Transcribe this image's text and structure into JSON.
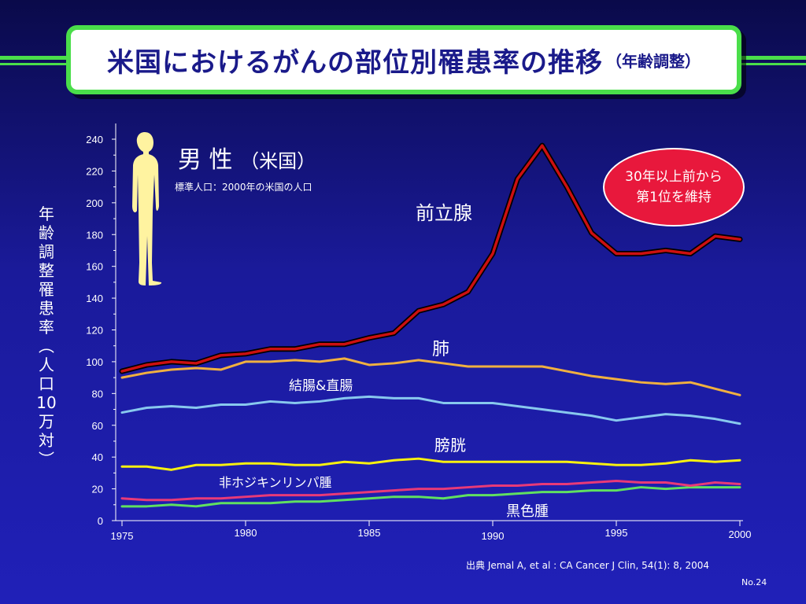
{
  "slide": {
    "title": "米国におけるがんの部位別罹患率の推移",
    "title_sub": "（年齢調整）",
    "source": "出典  Jemal A, et al : CA Cancer J Clin, 54(1): 8, 2004",
    "page_no": "No.24",
    "colors": {
      "background": "#1a1a9a",
      "stripe": "#4ade4a",
      "title_text": "#1a1a8a",
      "badge": "#e8183c"
    }
  },
  "panel": {
    "heading": "男 性",
    "heading_suffix": "（米国）",
    "subheading": "標準人口：2000年の米国の人口",
    "icon": "male-figure-icon",
    "note": "30年以上前から\n第1位を維持"
  },
  "chart_data": {
    "type": "line",
    "title": "",
    "xlabel": "",
    "ylabel": "年\n齢\n調\n整\n罹\n患\n率\n︵\n人\n口\n10\n万\n対\n︶",
    "xlim": [
      1975,
      2000
    ],
    "ylim": [
      0,
      240
    ],
    "x_ticks": [
      1975,
      1980,
      1985,
      1990,
      1995,
      2000
    ],
    "y_ticks": [
      0,
      20,
      40,
      60,
      80,
      100,
      120,
      140,
      160,
      180,
      200,
      220,
      240
    ],
    "grid": false,
    "legend": "inline labels",
    "x": [
      1975,
      1976,
      1977,
      1978,
      1979,
      1980,
      1981,
      1982,
      1983,
      1984,
      1985,
      1986,
      1987,
      1988,
      1989,
      1990,
      1991,
      1992,
      1993,
      1994,
      1995,
      1996,
      1997,
      1998,
      1999,
      2000
    ],
    "series": [
      {
        "name": "前立腺",
        "color": "#cc1010",
        "values": [
          94,
          98,
          100,
          99,
          104,
          105,
          108,
          108,
          111,
          111,
          115,
          118,
          132,
          136,
          144,
          168,
          215,
          236,
          210,
          181,
          168,
          168,
          170,
          168,
          179,
          177
        ]
      },
      {
        "name": "肺",
        "color": "#f0b040",
        "values": [
          90,
          93,
          95,
          96,
          95,
          100,
          100,
          101,
          100,
          102,
          98,
          99,
          101,
          99,
          97,
          97,
          97,
          97,
          94,
          91,
          89,
          87,
          86,
          87,
          83,
          79
        ]
      },
      {
        "name": "結腸&直腸",
        "color": "#88c8ee",
        "values": [
          68,
          71,
          72,
          71,
          73,
          73,
          75,
          74,
          75,
          77,
          78,
          77,
          77,
          74,
          74,
          74,
          72,
          70,
          68,
          66,
          63,
          65,
          67,
          66,
          64,
          61
        ]
      },
      {
        "name": "膀胱",
        "color": "#f8f010",
        "values": [
          34,
          34,
          32,
          35,
          35,
          36,
          36,
          35,
          35,
          37,
          36,
          38,
          39,
          37,
          37,
          37,
          37,
          37,
          37,
          36,
          35,
          35,
          36,
          38,
          37,
          38
        ]
      },
      {
        "name": "非ホジキンリンパ腫",
        "color": "#e83a78",
        "values": [
          14,
          13,
          13,
          14,
          14,
          15,
          16,
          16,
          16,
          17,
          18,
          19,
          20,
          20,
          21,
          22,
          22,
          23,
          23,
          24,
          25,
          24,
          24,
          22,
          24,
          23
        ]
      },
      {
        "name": "黒色腫",
        "color": "#60e060",
        "values": [
          9,
          9,
          10,
          9,
          11,
          11,
          11,
          12,
          12,
          13,
          14,
          15,
          15,
          14,
          16,
          16,
          17,
          18,
          18,
          19,
          19,
          21,
          20,
          21,
          21,
          21
        ]
      }
    ]
  }
}
